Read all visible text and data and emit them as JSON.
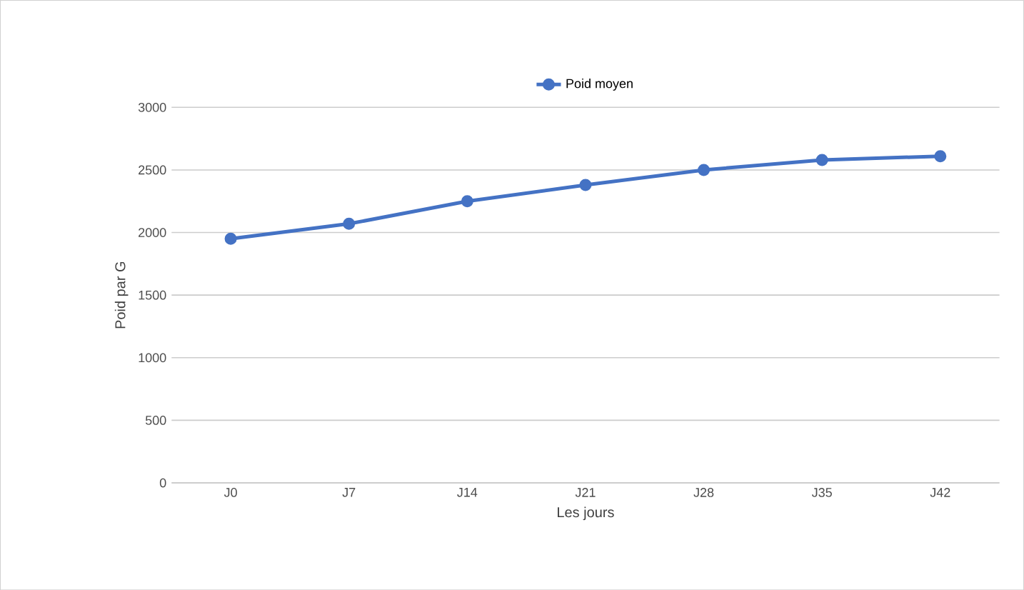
{
  "chart_data": {
    "type": "line",
    "xlabel": "Les jours",
    "ylabel": "Poid par G",
    "categories": [
      "J0",
      "J7",
      "J14",
      "J21",
      "J28",
      "J35",
      "J42"
    ],
    "series": [
      {
        "name": "Poid moyen",
        "color": "#4472c4",
        "values": [
          1950,
          2070,
          2250,
          2380,
          2500,
          2580,
          2610
        ]
      }
    ],
    "ylim": [
      0,
      3000
    ],
    "yticks": [
      0,
      500,
      1000,
      1500,
      2000,
      2500,
      3000
    ],
    "grid": "y",
    "legend": "top",
    "marker": "circle"
  }
}
